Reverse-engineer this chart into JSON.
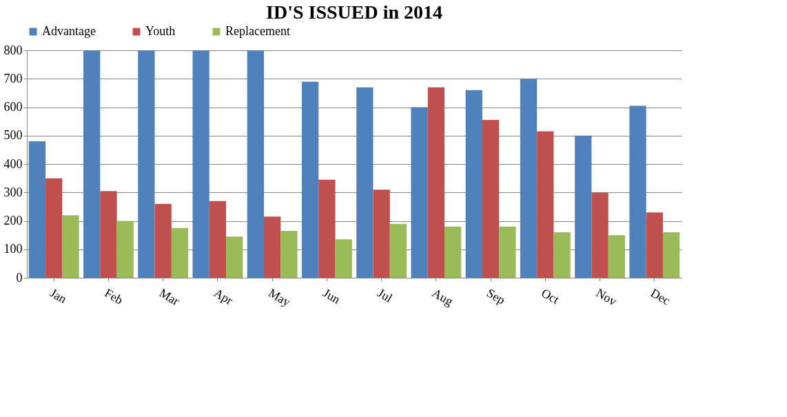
{
  "chart_data": {
    "type": "bar",
    "title": "ID'S ISSUED in 2014",
    "categories": [
      "Jan",
      "Feb",
      "Mar",
      "Apr",
      "May",
      "Jun",
      "Jul",
      "Aug",
      "Sep",
      "Oct",
      "Nov",
      "Dec"
    ],
    "series": [
      {
        "name": "Advantage",
        "color": "#4f81bd",
        "values": [
          480,
          800,
          800,
          800,
          800,
          690,
          670,
          600,
          660,
          700,
          500,
          605
        ]
      },
      {
        "name": "Youth",
        "color": "#c0504d",
        "values": [
          350,
          305,
          260,
          270,
          215,
          345,
          310,
          670,
          555,
          515,
          300,
          230
        ]
      },
      {
        "name": "Replacement",
        "color": "#9bbb59",
        "values": [
          220,
          200,
          175,
          145,
          165,
          135,
          190,
          180,
          180,
          160,
          150,
          160
        ]
      }
    ],
    "ylim": [
      0,
      800
    ],
    "yticks": [
      0,
      100,
      200,
      300,
      400,
      500,
      600,
      700,
      800
    ],
    "grid": "y",
    "legend": "top"
  }
}
